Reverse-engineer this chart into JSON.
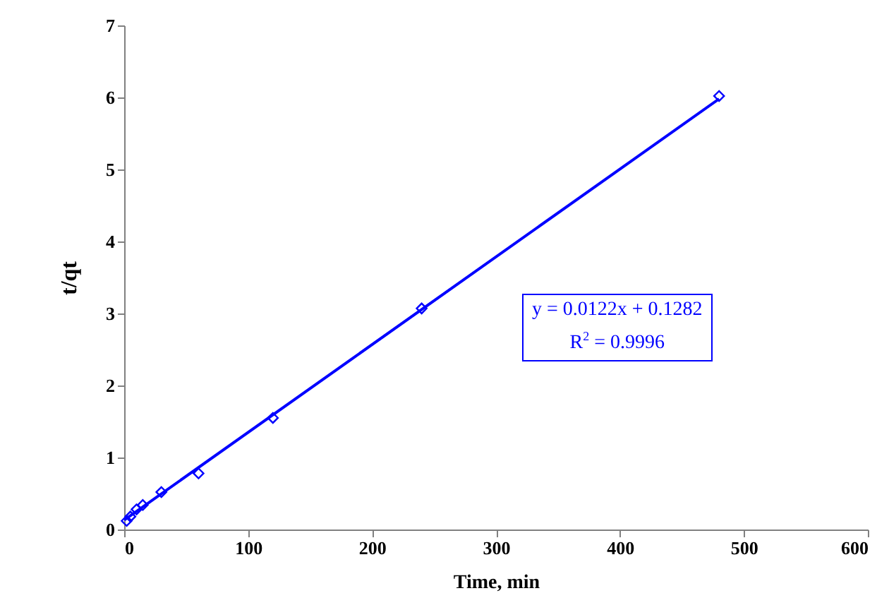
{
  "chart_data": {
    "type": "scatter",
    "xlabel": "Time, min",
    "ylabel": "t/qt",
    "xlim": [
      0,
      600
    ],
    "xticks": [
      0,
      100,
      200,
      300,
      400,
      500,
      600
    ],
    "ylim": [
      0,
      7
    ],
    "yticks": [
      0,
      1,
      2,
      3,
      4,
      5,
      6,
      7
    ],
    "grid": false,
    "series": [
      {
        "color": "#0000ff",
        "marker": "diamond",
        "x": [
          2,
          5,
          10,
          15,
          30,
          60,
          120,
          240,
          480
        ],
        "values": [
          0.12,
          0.18,
          0.28,
          0.34,
          0.52,
          0.78,
          1.55,
          3.07,
          6.02
        ]
      },
      {
        "type": "line",
        "color": "#0000ff",
        "line_style": "solid",
        "x": [
          0,
          480
        ],
        "values": [
          0.13,
          5.98
        ]
      }
    ],
    "annotations": [
      "y = 0.0122x + 0.1282",
      "R$^{2}$ = 0.9996"
    ]
  }
}
